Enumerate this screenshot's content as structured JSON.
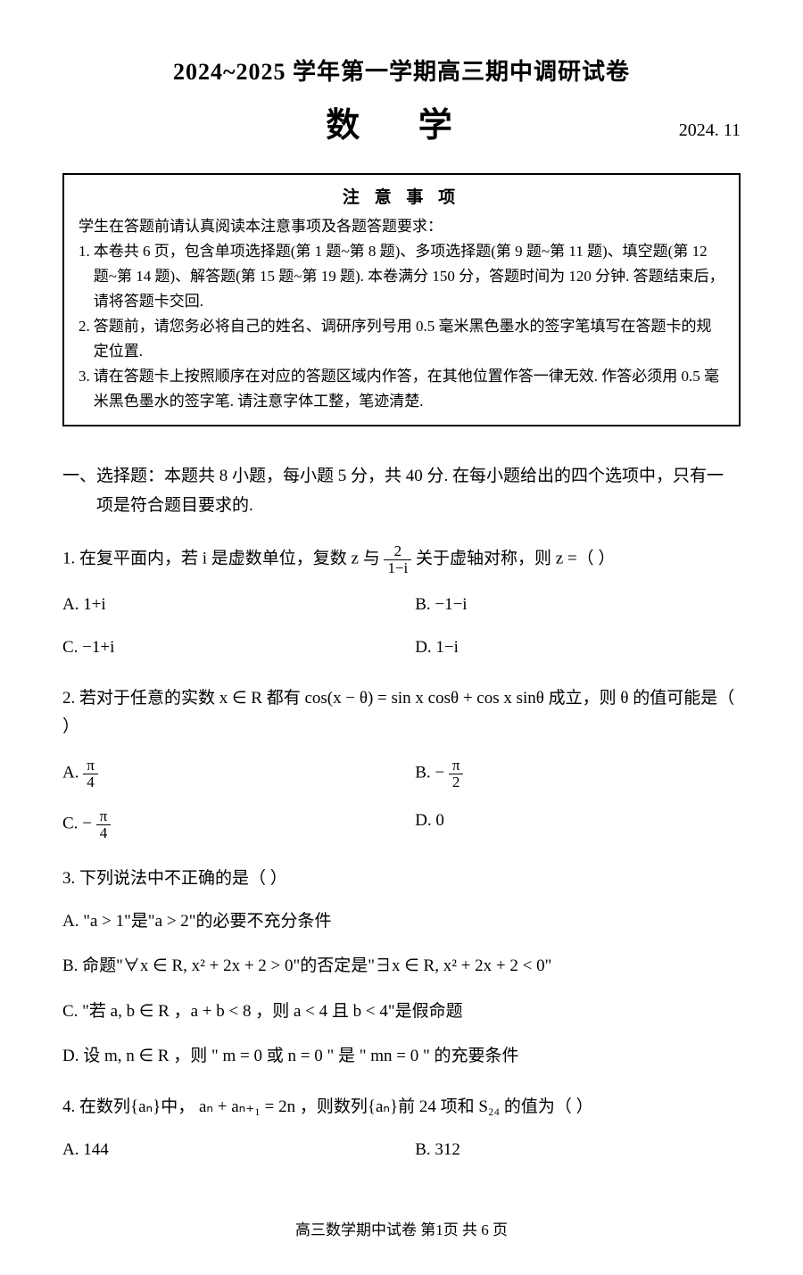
{
  "header": {
    "title": "2024~2025 学年第一学期高三期中调研试卷",
    "subject": "数 学",
    "date": "2024. 11"
  },
  "notice": {
    "heading": "注 意 事 项",
    "intro": "学生在答题前请认真阅读本注意事项及各题答题要求：",
    "items": [
      {
        "num": "1.",
        "text": "本卷共 6 页，包含单项选择题(第 1 题~第 8 题)、多项选择题(第 9 题~第 11 题)、填空题(第 12 题~第 14 题)、解答题(第 15 题~第 19 题). 本卷满分 150 分，答题时间为 120 分钟. 答题结束后，请将答题卡交回."
      },
      {
        "num": "2.",
        "text": "答题前，请您务必将自己的姓名、调研序列号用 0.5 毫米黑色墨水的签字笔填写在答题卡的规定位置."
      },
      {
        "num": "3.",
        "text": "请在答题卡上按照顺序在对应的答题区域内作答，在其他位置作答一律无效. 作答必须用 0.5 毫米黑色墨水的签字笔. 请注意字体工整，笔迹清楚."
      }
    ]
  },
  "section1": {
    "label": "一、",
    "text": "选择题：本题共 8 小题，每小题 5 分，共 40 分. 在每小题给出的四个选项中，只有一项是符合题目要求的."
  },
  "q1": {
    "stem_pre": "1.  在复平面内，若 i 是虚数单位，复数 z 与 ",
    "frac_num": "2",
    "frac_den": "1−i",
    "stem_post": " 关于虚轴对称，则 z =（      ）",
    "optA": "A.  1+i",
    "optB": "B.  −1−i",
    "optC": "C.  −1+i",
    "optD": "D.  1−i"
  },
  "q2": {
    "stem": "2.  若对于任意的实数 x ∈ R 都有 cos(x − θ) = sin x cosθ + cos x sinθ 成立，则 θ 的值可能是（      ）",
    "optA_pre": "A.  ",
    "optA_num": "π",
    "optA_den": "4",
    "optB_pre": "B.  −",
    "optB_num": "π",
    "optB_den": "2",
    "optC_pre": "C.  −",
    "optC_num": "π",
    "optC_den": "4",
    "optD": "D.  0"
  },
  "q3": {
    "stem": "3.  下列说法中不正确的是（      ）",
    "optA": "A.  \"a > 1\"是\"a > 2\"的必要不充分条件",
    "optB": "B.  命题\"∀x ∈ R, x² + 2x + 2 > 0\"的否定是\"∃x ∈ R, x² + 2x + 2 < 0\"",
    "optC": "C.  \"若 a, b ∈ R ，a + b < 8 ，则 a < 4 且 b < 4\"是假命题",
    "optD": "D.  设 m, n ∈ R ，则 \" m = 0 或 n = 0 \" 是 \" mn = 0 \" 的充要条件"
  },
  "q4": {
    "stem": "4.  在数列{aₙ}中， aₙ + aₙ₊₁ = 2n ，则数列{aₙ}前 24 项和 S₂₄ 的值为（      ）",
    "optA": "A.  144",
    "optB": "B.  312"
  },
  "footer": "高三数学期中试卷    第1页  共 6 页"
}
